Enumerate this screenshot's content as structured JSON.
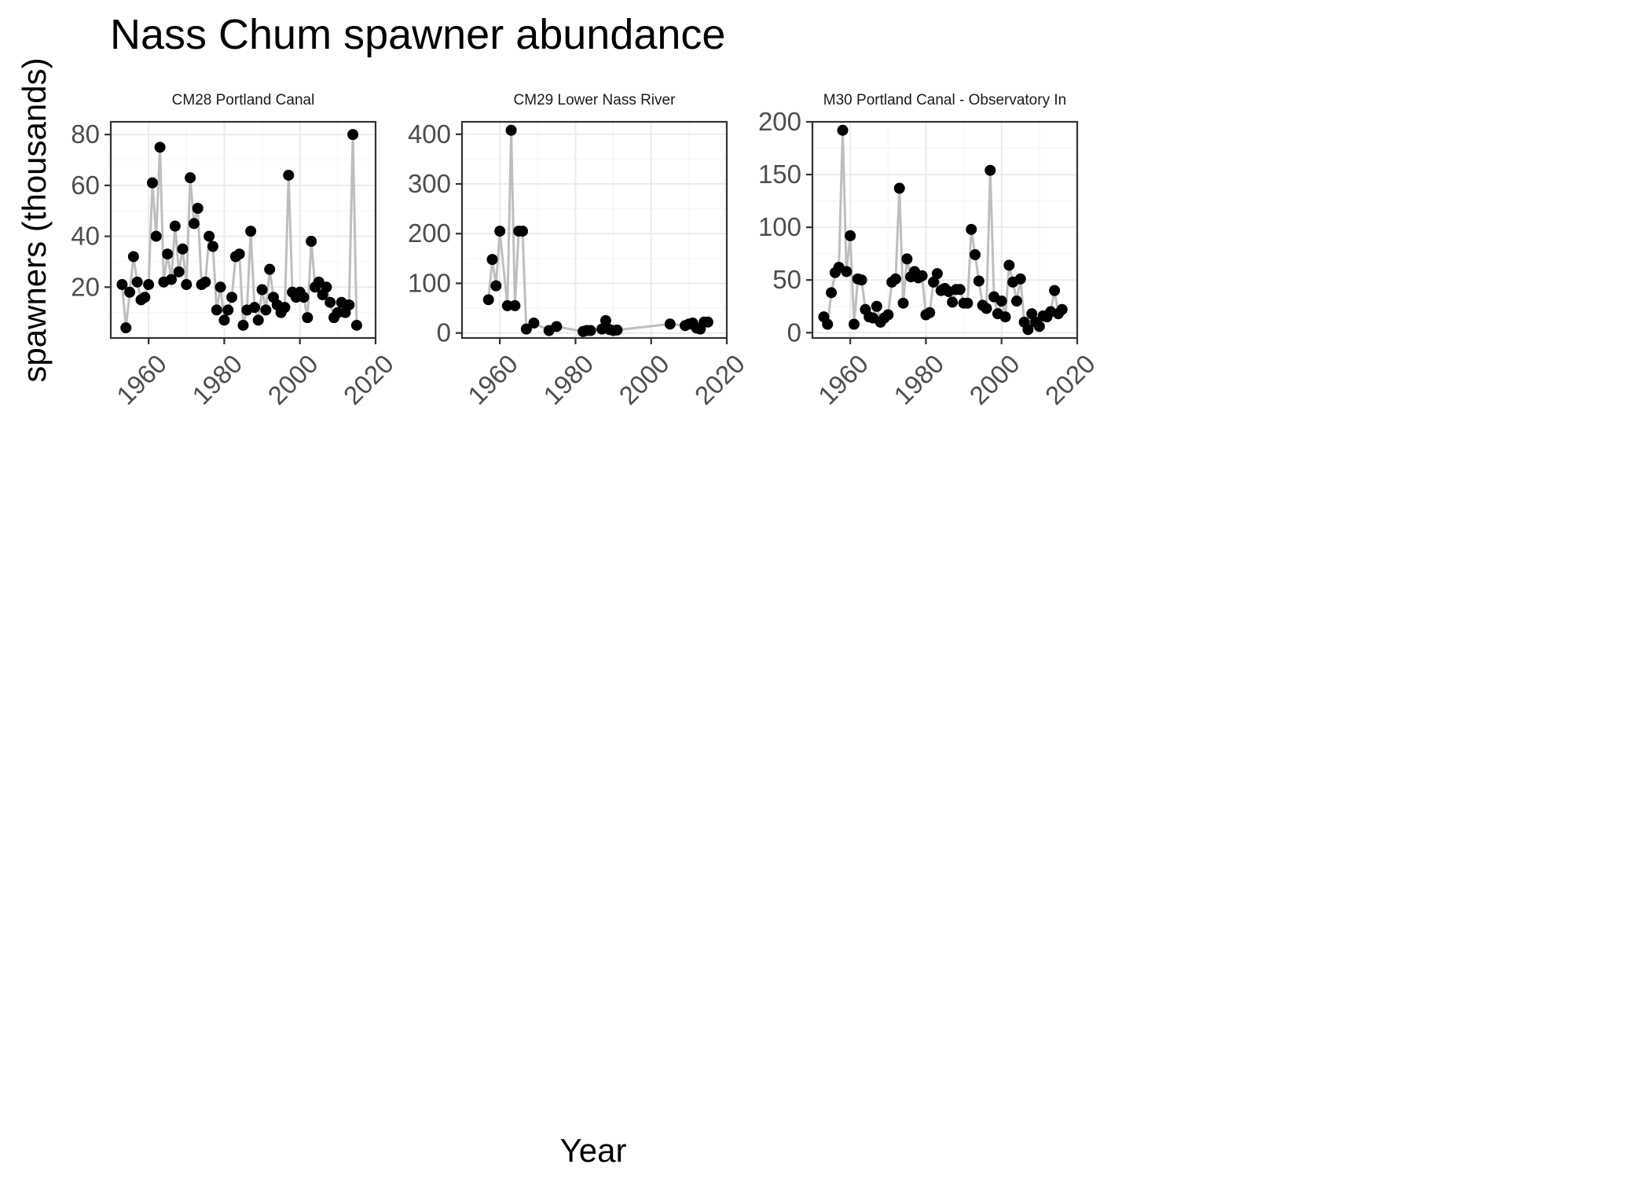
{
  "title": "Nass Chum spawner abundance",
  "ylabel": "spawners (thousands)",
  "xlabel": "Year",
  "chart_data": [
    {
      "type": "line",
      "title": "CM28 Portland Canal",
      "strip_display": "CM28 Portland Canal",
      "xlim": [
        1950,
        2020
      ],
      "ylim": [
        0,
        85
      ],
      "x_ticks": [
        1960,
        1980,
        2000,
        2020
      ],
      "y_ticks": [
        20,
        40,
        60,
        80
      ],
      "grid": true,
      "markers": true,
      "points": [
        [
          1953,
          21
        ],
        [
          1954,
          4
        ],
        [
          1955,
          18
        ],
        [
          1956,
          32
        ],
        [
          1957,
          22
        ],
        [
          1958,
          15
        ],
        [
          1959,
          16
        ],
        [
          1960,
          21
        ],
        [
          1961,
          61
        ],
        [
          1962,
          40
        ],
        [
          1963,
          75
        ],
        [
          1964,
          22
        ],
        [
          1965,
          33
        ],
        [
          1966,
          23
        ],
        [
          1967,
          44
        ],
        [
          1968,
          26
        ],
        [
          1969,
          35
        ],
        [
          1970,
          21
        ],
        [
          1971,
          63
        ],
        [
          1972,
          45
        ],
        [
          1973,
          51
        ],
        [
          1974,
          21
        ],
        [
          1975,
          22
        ],
        [
          1976,
          40
        ],
        [
          1977,
          36
        ],
        [
          1978,
          11
        ],
        [
          1979,
          20
        ],
        [
          1980,
          7
        ],
        [
          1981,
          11
        ],
        [
          1982,
          16
        ],
        [
          1983,
          32
        ],
        [
          1984,
          33
        ],
        [
          1985,
          5
        ],
        [
          1986,
          11
        ],
        [
          1987,
          42
        ],
        [
          1988,
          12
        ],
        [
          1989,
          7
        ],
        [
          1990,
          19
        ],
        [
          1991,
          11
        ],
        [
          1992,
          27
        ],
        [
          1993,
          16
        ],
        [
          1994,
          13
        ],
        [
          1995,
          10
        ],
        [
          1996,
          12
        ],
        [
          1997,
          64
        ],
        [
          1998,
          18
        ],
        [
          1999,
          16
        ],
        [
          2000,
          18
        ],
        [
          2001,
          16
        ],
        [
          2002,
          8
        ],
        [
          2003,
          38
        ],
        [
          2004,
          20
        ],
        [
          2005,
          22
        ],
        [
          2006,
          17
        ],
        [
          2007,
          20
        ],
        [
          2008,
          14
        ],
        [
          2009,
          8
        ],
        [
          2010,
          10
        ],
        [
          2011,
          14
        ],
        [
          2012,
          10
        ],
        [
          2013,
          13
        ],
        [
          2014,
          80
        ],
        [
          2015,
          5
        ]
      ]
    },
    {
      "type": "line",
      "title": "CM29 Lower Nass River",
      "strip_display": "CM29 Lower Nass River",
      "xlim": [
        1950,
        2020
      ],
      "ylim": [
        -10,
        425
      ],
      "x_ticks": [
        1960,
        1980,
        2000,
        2020
      ],
      "y_ticks": [
        0,
        100,
        200,
        300,
        400
      ],
      "grid": true,
      "markers": true,
      "points": [
        [
          1957,
          67
        ],
        [
          1958,
          148
        ],
        [
          1959,
          95
        ],
        [
          1960,
          205
        ],
        [
          1962,
          55
        ],
        [
          1963,
          408
        ],
        [
          1964,
          55
        ],
        [
          1965,
          205
        ],
        [
          1966,
          205
        ],
        [
          1967,
          8
        ],
        [
          1969,
          20
        ],
        [
          1973,
          5
        ],
        [
          1975,
          13
        ],
        [
          1982,
          3
        ],
        [
          1983,
          5
        ],
        [
          1984,
          5
        ],
        [
          1987,
          8
        ],
        [
          1988,
          25
        ],
        [
          1989,
          7
        ],
        [
          1990,
          5
        ],
        [
          1991,
          6
        ],
        [
          2005,
          18
        ],
        [
          2009,
          15
        ],
        [
          2010,
          18
        ],
        [
          2011,
          20
        ],
        [
          2012,
          10
        ],
        [
          2013,
          8
        ],
        [
          2014,
          22
        ],
        [
          2015,
          22
        ]
      ]
    },
    {
      "type": "line",
      "title": "CM30 Portland Canal - Observatory In",
      "strip_display": "M30 Portland Canal - Observatory In",
      "xlim": [
        1950,
        2020
      ],
      "ylim": [
        -5,
        200
      ],
      "x_ticks": [
        1960,
        1980,
        2000,
        2020
      ],
      "y_ticks": [
        0,
        50,
        100,
        150,
        200
      ],
      "grid": true,
      "markers": true,
      "points": [
        [
          1953,
          15
        ],
        [
          1954,
          8
        ],
        [
          1955,
          38
        ],
        [
          1956,
          57
        ],
        [
          1957,
          62
        ],
        [
          1958,
          192
        ],
        [
          1959,
          58
        ],
        [
          1960,
          92
        ],
        [
          1961,
          8
        ],
        [
          1962,
          51
        ],
        [
          1963,
          50
        ],
        [
          1964,
          22
        ],
        [
          1965,
          15
        ],
        [
          1966,
          14
        ],
        [
          1967,
          25
        ],
        [
          1968,
          10
        ],
        [
          1969,
          14
        ],
        [
          1970,
          17
        ],
        [
          1971,
          48
        ],
        [
          1972,
          51
        ],
        [
          1973,
          137
        ],
        [
          1974,
          28
        ],
        [
          1975,
          70
        ],
        [
          1976,
          53
        ],
        [
          1977,
          58
        ],
        [
          1978,
          52
        ],
        [
          1979,
          54
        ],
        [
          1980,
          17
        ],
        [
          1981,
          19
        ],
        [
          1982,
          48
        ],
        [
          1983,
          56
        ],
        [
          1984,
          40
        ],
        [
          1985,
          42
        ],
        [
          1986,
          39
        ],
        [
          1987,
          29
        ],
        [
          1988,
          41
        ],
        [
          1989,
          41
        ],
        [
          1990,
          28
        ],
        [
          1991,
          28
        ],
        [
          1992,
          98
        ],
        [
          1993,
          74
        ],
        [
          1994,
          49
        ],
        [
          1995,
          26
        ],
        [
          1996,
          23
        ],
        [
          1997,
          154
        ],
        [
          1998,
          34
        ],
        [
          1999,
          18
        ],
        [
          2000,
          30
        ],
        [
          2001,
          15
        ],
        [
          2002,
          64
        ],
        [
          2003,
          48
        ],
        [
          2004,
          30
        ],
        [
          2005,
          51
        ],
        [
          2006,
          10
        ],
        [
          2007,
          3
        ],
        [
          2008,
          18
        ],
        [
          2009,
          10
        ],
        [
          2010,
          6
        ],
        [
          2011,
          16
        ],
        [
          2012,
          15
        ],
        [
          2013,
          20
        ],
        [
          2014,
          40
        ],
        [
          2015,
          18
        ],
        [
          2016,
          22
        ]
      ]
    }
  ]
}
